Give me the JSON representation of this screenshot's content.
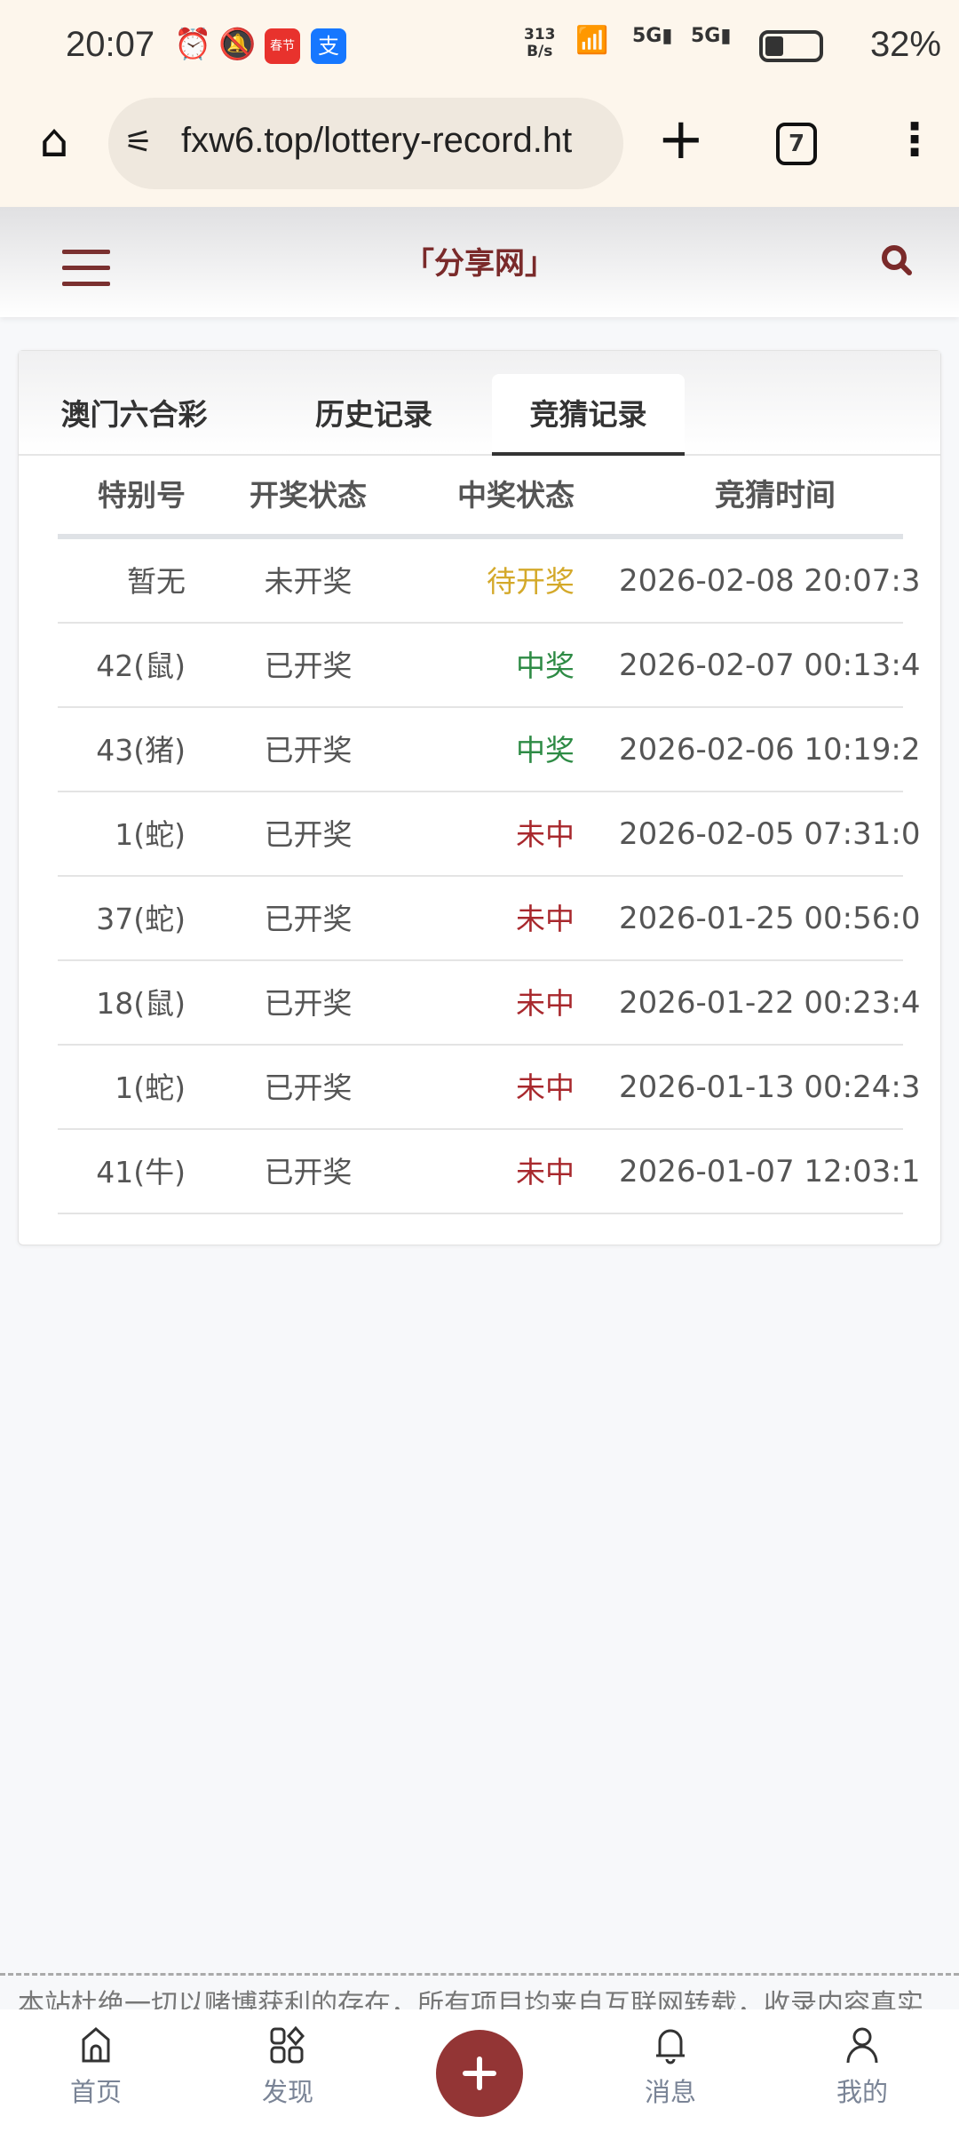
{
  "status_bar": {
    "time": "20:07",
    "net_speed_value": "313",
    "net_speed_unit": "B/s",
    "battery": "32%",
    "battery_level": 0.32,
    "app_icon_1": "春节",
    "app_icon_2": "支"
  },
  "browser": {
    "url": "fxw6.top/lottery-record.ht",
    "tab_count": "7"
  },
  "site": {
    "title": "「分享网」",
    "accent": "#7a2a2a"
  },
  "tabs": [
    {
      "label": "澳门六合彩",
      "active": false
    },
    {
      "label": "历史记录",
      "active": false
    },
    {
      "label": "竞猜记录",
      "active": true
    }
  ],
  "table": {
    "headers": [
      "特别号",
      "开奖状态",
      "中奖状态",
      "竞猜时间"
    ],
    "rows": [
      {
        "number": "暂无",
        "draw_status": "未开奖",
        "win_status": "待开奖",
        "win_color": "#d4a92a",
        "time": "2026-02-08 20:07:3"
      },
      {
        "number": "42(鼠)",
        "draw_status": "已开奖",
        "win_status": "中奖",
        "win_color": "#2e8b45",
        "time": "2026-02-07 00:13:4"
      },
      {
        "number": "43(猪)",
        "draw_status": "已开奖",
        "win_status": "中奖",
        "win_color": "#2e8b45",
        "time": "2026-02-06 10:19:2"
      },
      {
        "number": "1(蛇)",
        "draw_status": "已开奖",
        "win_status": "未中",
        "win_color": "#a8282d",
        "time": "2026-02-05 07:31:0"
      },
      {
        "number": "37(蛇)",
        "draw_status": "已开奖",
        "win_status": "未中",
        "win_color": "#a8282d",
        "time": "2026-01-25 00:56:0"
      },
      {
        "number": "18(鼠)",
        "draw_status": "已开奖",
        "win_status": "未中",
        "win_color": "#a8282d",
        "time": "2026-01-22 00:23:4"
      },
      {
        "number": "1(蛇)",
        "draw_status": "已开奖",
        "win_status": "未中",
        "win_color": "#a8282d",
        "time": "2026-01-13 00:24:3"
      },
      {
        "number": "41(牛)",
        "draw_status": "已开奖",
        "win_status": "未中",
        "win_color": "#a8282d",
        "time": "2026-01-07 12:03:1"
      }
    ]
  },
  "footer": {
    "disclaimer": "本站杜绝一切以赌博获利的存在，所有项目均来自互联网转载，收录内容真实"
  },
  "bottom_nav": [
    {
      "label": "首页",
      "icon": "home-icon"
    },
    {
      "label": "发现",
      "icon": "grid-icon"
    },
    {
      "label": "",
      "icon": "plus-icon"
    },
    {
      "label": "消息",
      "icon": "bell-icon"
    },
    {
      "label": "我的",
      "icon": "user-icon"
    }
  ]
}
